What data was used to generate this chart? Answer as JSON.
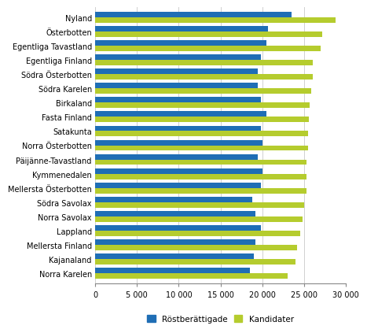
{
  "categories": [
    "Norra Karelen",
    "Kajanaland",
    "Mellersta Finland",
    "Lappland",
    "Norra Savolax",
    "Södra Savolax",
    "Mellersta Österbotten",
    "Kymmenedalen",
    "Päijänne-Tavastland",
    "Norra Österbotten",
    "Satakunta",
    "Fasta Finland",
    "Birkaland",
    "Södra Karelen",
    "Södra Österbotten",
    "Egentliga Finland",
    "Egentliga Tavastland",
    "Österbotten",
    "Nyland"
  ],
  "rostberättigade": [
    18500,
    19000,
    19200,
    19800,
    19200,
    18800,
    19800,
    20000,
    19500,
    20000,
    19800,
    20500,
    19800,
    19500,
    19500,
    19800,
    20500,
    20700,
    23500
  ],
  "kandidater": [
    23000,
    24000,
    24200,
    24500,
    24800,
    25000,
    25300,
    25300,
    25300,
    25500,
    25500,
    25600,
    25700,
    25800,
    26000,
    26000,
    27000,
    27200,
    28800
  ],
  "color_rostberättigade": "#1f6eb5",
  "color_kandidater": "#b5cc2e",
  "xlim": [
    0,
    30000
  ],
  "xticks": [
    0,
    5000,
    10000,
    15000,
    20000,
    25000,
    30000
  ],
  "xtick_labels": [
    "0",
    "5 000",
    "10 000",
    "15 000",
    "20 000",
    "25 000",
    "30 000"
  ],
  "legend_label_1": "Röstberättigade",
  "legend_label_2": "Kandidater",
  "background_color": "#ffffff",
  "grid_color": "#d0d0d0",
  "bar_height": 0.38
}
